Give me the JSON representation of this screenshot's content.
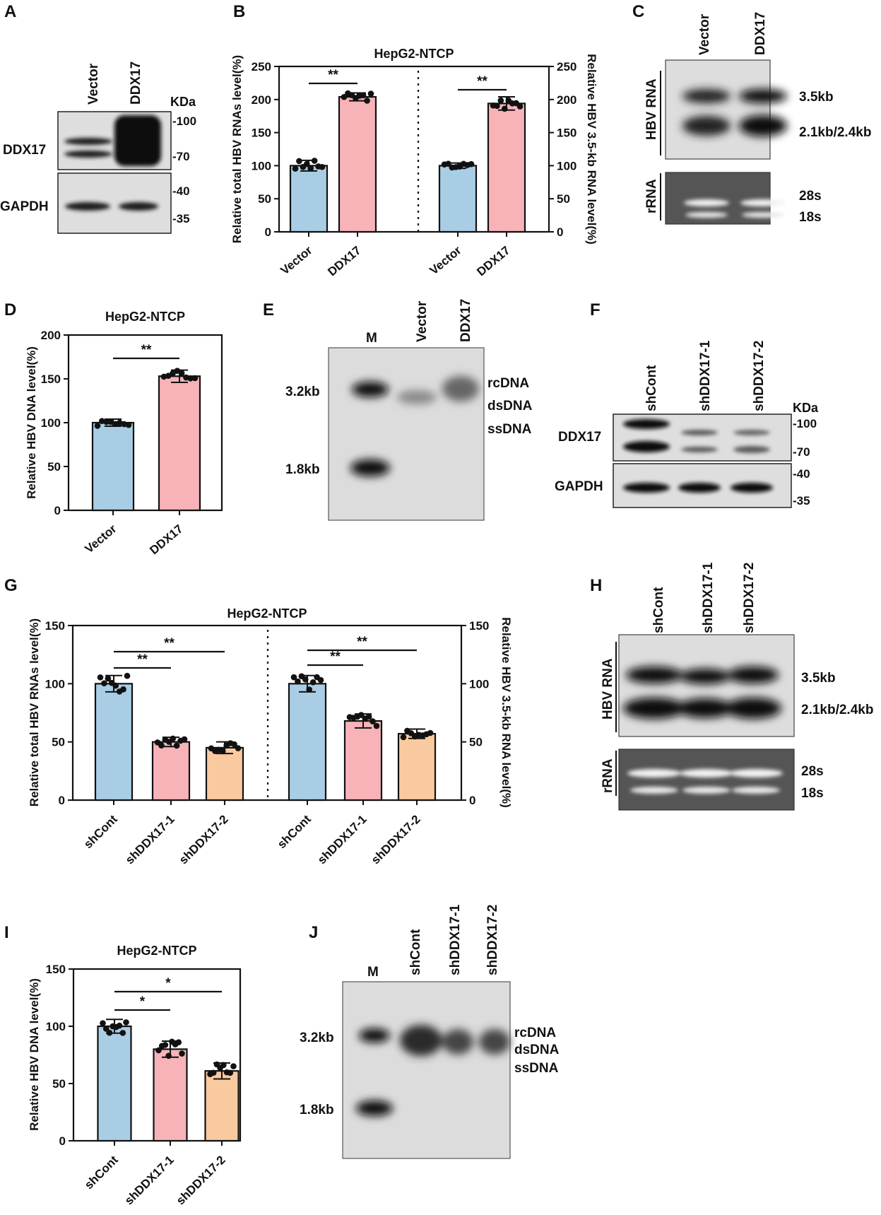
{
  "colors": {
    "blue": "#a9cde4",
    "pink": "#f7b3b8",
    "orange": "#f9caa0",
    "ink": "#111111",
    "blot_bg": "#dcdcdc",
    "rrna_bg": "#555555"
  },
  "panels": {
    "A": {
      "letter": "A",
      "lanes": [
        "Vector",
        "DDX17"
      ],
      "kda": "KDa",
      "rows": [
        "DDX17",
        "GAPDH"
      ],
      "markers": [
        "-100",
        "-70",
        "-40",
        "-35"
      ]
    },
    "B": {
      "letter": "B"
    },
    "C": {
      "letter": "C",
      "lanes": [
        "Vector",
        "DDX17"
      ],
      "side_hbv": "HBV RNA",
      "side_rrna": "rRNA",
      "bands": [
        "3.5kb",
        "2.1kb/2.4kb",
        "28s",
        "18s"
      ]
    },
    "D": {
      "letter": "D"
    },
    "E": {
      "letter": "E",
      "lanes": [
        "M",
        "Vector",
        "DDX17"
      ],
      "sizes": [
        "3.2kb",
        "1.8kb"
      ],
      "forms": [
        "rcDNA",
        "dsDNA",
        "ssDNA"
      ]
    },
    "F": {
      "letter": "F",
      "lanes": [
        "shCont",
        "shDDX17-1",
        "shDDX17-2"
      ],
      "kda": "KDa",
      "rows": [
        "DDX17",
        "GAPDH"
      ],
      "markers": [
        "-100",
        "-70",
        "-40",
        "-35"
      ]
    },
    "G": {
      "letter": "G"
    },
    "H": {
      "letter": "H",
      "lanes": [
        "shCont",
        "shDDX17-1",
        "shDDX17-2"
      ],
      "side_hbv": "HBV RNA",
      "side_rrna": "rRNA",
      "bands": [
        "3.5kb",
        "2.1kb/2.4kb",
        "28s",
        "18s"
      ]
    },
    "I": {
      "letter": "I"
    },
    "J": {
      "letter": "J",
      "lanes": [
        "M",
        "shCont",
        "shDDX17-1",
        "shDDX17-2"
      ],
      "sizes": [
        "3.2kb",
        "1.8kb"
      ],
      "forms": [
        "rcDNA",
        "dsDNA",
        "ssDNA"
      ]
    }
  },
  "chart_data": [
    {
      "id": "B",
      "type": "bar",
      "title": "HepG2-NTCP",
      "ylabel": "Relative total HBV RNAs level(%)",
      "ylabel_right": "Relative HBV 3.5-kb RNA level(%)",
      "ylim": [
        0,
        250
      ],
      "yticks": [
        "0",
        "50",
        "100",
        "150",
        "200",
        "250"
      ],
      "categories": [
        "Vector",
        "DDX17",
        "Vector",
        "DDX17"
      ],
      "values": [
        100,
        204,
        100,
        194
      ],
      "errors": [
        8,
        6,
        4,
        10
      ],
      "colors": [
        "blue",
        "pink",
        "blue",
        "pink"
      ],
      "significance": [
        {
          "from": 0,
          "to": 1,
          "label": "**"
        },
        {
          "from": 2,
          "to": 3,
          "label": "**"
        }
      ]
    },
    {
      "id": "D",
      "type": "bar",
      "title": "HepG2-NTCP",
      "ylabel": "Relative HBV DNA level(%)",
      "ylim": [
        0,
        200
      ],
      "yticks": [
        "0",
        "50",
        "100",
        "150",
        "200"
      ],
      "categories": [
        "Vector",
        "DDX17"
      ],
      "values": [
        100,
        153
      ],
      "errors": [
        4,
        7
      ],
      "colors": [
        "blue",
        "pink"
      ],
      "significance": [
        {
          "from": 0,
          "to": 1,
          "label": "**"
        }
      ]
    },
    {
      "id": "G",
      "type": "bar",
      "title": "HepG2-NTCP",
      "ylabel": "Relative total HBV RNAs level(%)",
      "ylabel_right": "Relative HBV 3.5-kb RNA level(%)",
      "ylim": [
        0,
        150
      ],
      "yticks": [
        "0",
        "50",
        "100",
        "150"
      ],
      "categories": [
        "shCont",
        "shDDX17-1",
        "shDDX17-2",
        "shCont",
        "shDDX17-1",
        "shDDX17-2"
      ],
      "values": [
        100,
        50,
        45,
        100,
        68,
        57
      ],
      "errors": [
        7,
        4,
        5,
        7,
        6,
        4
      ],
      "colors": [
        "blue",
        "pink",
        "orange",
        "blue",
        "pink",
        "orange"
      ],
      "significance": [
        {
          "from": 0,
          "to": 1,
          "label": "**"
        },
        {
          "from": 0,
          "to": 2,
          "label": "**"
        },
        {
          "from": 3,
          "to": 4,
          "label": "**"
        },
        {
          "from": 3,
          "to": 5,
          "label": "**"
        }
      ]
    },
    {
      "id": "I",
      "type": "bar",
      "title": "HepG2-NTCP",
      "ylabel": "Relative HBV DNA level(%)",
      "ylim": [
        0,
        150
      ],
      "yticks": [
        "0",
        "50",
        "100",
        "150"
      ],
      "categories": [
        "shCont",
        "shDDX17-1",
        "shDDX17-2"
      ],
      "values": [
        100,
        80,
        61
      ],
      "errors": [
        6,
        7,
        7
      ],
      "colors": [
        "blue",
        "pink",
        "orange"
      ],
      "significance": [
        {
          "from": 0,
          "to": 1,
          "label": "*"
        },
        {
          "from": 0,
          "to": 2,
          "label": "*"
        }
      ]
    }
  ]
}
